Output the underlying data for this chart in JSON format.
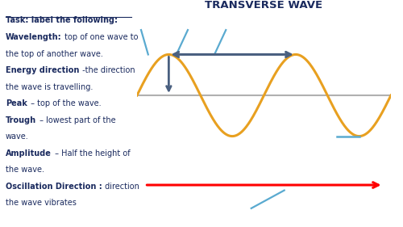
{
  "title": "TRANSVERSE WAVE",
  "bg_color": "#ffffff",
  "text_color": "#1a2a5e",
  "wave_color": "#e8a020",
  "axis_color": "#b0b0b0",
  "red_color": "#ff0000",
  "blue_arrow_color": "#4a6080",
  "label_line_color": "#5aaad0",
  "lines": [
    {
      "bold": "Wavelength:",
      "normal": " top of one wave to"
    },
    {
      "bold": null,
      "normal": "the top of another wave."
    },
    {
      "bold": "Energy direction",
      "normal": " -the direction"
    },
    {
      "bold": null,
      "normal": "the wave is travelling."
    },
    {
      "bold": "Peak",
      "normal": " – top of the wave."
    },
    {
      "bold": "Trough",
      "normal": " – lowest part of the"
    },
    {
      "bold": null,
      "normal": "wave."
    },
    {
      "bold": "Amplitude",
      "normal": " – Half the height of"
    },
    {
      "bold": null,
      "normal": "the wave."
    },
    {
      "bold": "Oscillation Direction :",
      "normal": " direction"
    },
    {
      "bold": null,
      "normal": "the wave vibrates"
    }
  ]
}
